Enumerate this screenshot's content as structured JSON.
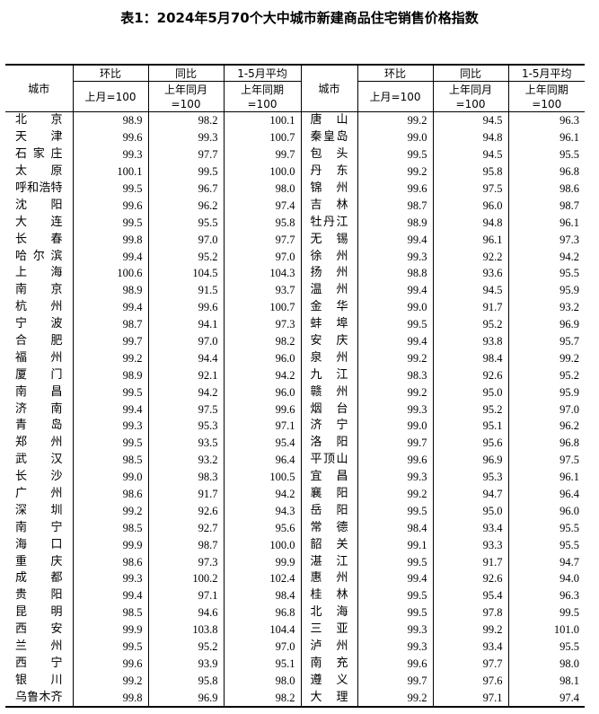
{
  "title": "表1：2024年5月70个大中城市新建商品住宅销售价格指数",
  "headers": {
    "city": "城市",
    "mom": "环比",
    "yoy": "同比",
    "avg": "1-5月平均",
    "mom_base": "上月=100",
    "yoy_base_1": "上年同月",
    "yoy_base_2": "=100",
    "avg_base_1": "上年同期",
    "avg_base_2": "=100"
  },
  "left_rows": [
    [
      "北京",
      "98.9",
      "98.2",
      "100.1"
    ],
    [
      "天津",
      "99.6",
      "99.3",
      "100.7"
    ],
    [
      "石家庄",
      "99.3",
      "97.7",
      "99.7"
    ],
    [
      "太原",
      "100.1",
      "99.5",
      "100.0"
    ],
    [
      "呼和浩特",
      "99.5",
      "96.7",
      "98.0"
    ],
    [
      "沈阳",
      "99.6",
      "96.2",
      "97.4"
    ],
    [
      "大连",
      "99.5",
      "95.5",
      "95.8"
    ],
    [
      "长春",
      "99.8",
      "97.0",
      "97.7"
    ],
    [
      "哈尔滨",
      "99.4",
      "95.2",
      "97.0"
    ],
    [
      "上海",
      "100.6",
      "104.5",
      "104.3"
    ],
    [
      "南京",
      "98.9",
      "91.5",
      "93.7"
    ],
    [
      "杭州",
      "99.4",
      "99.6",
      "100.7"
    ],
    [
      "宁波",
      "98.7",
      "94.1",
      "97.3"
    ],
    [
      "合肥",
      "99.7",
      "97.0",
      "98.2"
    ],
    [
      "福州",
      "99.2",
      "94.4",
      "96.0"
    ],
    [
      "厦门",
      "98.9",
      "92.1",
      "94.2"
    ],
    [
      "南昌",
      "99.5",
      "94.2",
      "96.0"
    ],
    [
      "济南",
      "99.4",
      "97.5",
      "99.6"
    ],
    [
      "青岛",
      "99.3",
      "95.3",
      "97.1"
    ],
    [
      "郑州",
      "99.5",
      "93.5",
      "95.4"
    ],
    [
      "武汉",
      "98.5",
      "93.2",
      "96.4"
    ],
    [
      "长沙",
      "99.0",
      "98.3",
      "100.5"
    ],
    [
      "广州",
      "98.6",
      "91.7",
      "94.2"
    ],
    [
      "深圳",
      "99.2",
      "92.6",
      "94.3"
    ],
    [
      "南宁",
      "98.5",
      "92.7",
      "95.6"
    ],
    [
      "海口",
      "99.9",
      "98.7",
      "100.0"
    ],
    [
      "重庆",
      "98.6",
      "97.3",
      "99.9"
    ],
    [
      "成都",
      "99.3",
      "100.2",
      "102.4"
    ],
    [
      "贵阳",
      "99.4",
      "97.1",
      "98.4"
    ],
    [
      "昆明",
      "98.5",
      "94.6",
      "96.8"
    ],
    [
      "西安",
      "99.9",
      "103.8",
      "104.4"
    ],
    [
      "兰州",
      "99.5",
      "95.2",
      "97.0"
    ],
    [
      "西宁",
      "99.6",
      "93.9",
      "95.1"
    ],
    [
      "银川",
      "99.2",
      "95.8",
      "98.0"
    ],
    [
      "乌鲁木齐",
      "99.8",
      "96.9",
      "98.2"
    ]
  ],
  "right_rows": [
    [
      "唐山",
      "99.2",
      "94.5",
      "96.3"
    ],
    [
      "秦皇岛",
      "99.0",
      "94.8",
      "96.1"
    ],
    [
      "包头",
      "99.5",
      "94.5",
      "95.5"
    ],
    [
      "丹东",
      "99.2",
      "95.8",
      "96.8"
    ],
    [
      "锦州",
      "99.6",
      "97.5",
      "98.6"
    ],
    [
      "吉林",
      "98.7",
      "96.0",
      "98.7"
    ],
    [
      "牡丹江",
      "98.9",
      "94.8",
      "96.1"
    ],
    [
      "无锡",
      "99.4",
      "96.1",
      "97.3"
    ],
    [
      "徐州",
      "99.3",
      "92.2",
      "94.2"
    ],
    [
      "扬州",
      "98.8",
      "93.6",
      "95.5"
    ],
    [
      "温州",
      "99.4",
      "94.5",
      "95.9"
    ],
    [
      "金华",
      "99.0",
      "91.7",
      "93.2"
    ],
    [
      "蚌埠",
      "99.5",
      "95.2",
      "96.9"
    ],
    [
      "安庆",
      "99.4",
      "93.8",
      "95.7"
    ],
    [
      "泉州",
      "99.2",
      "98.4",
      "99.2"
    ],
    [
      "九江",
      "98.3",
      "92.6",
      "95.2"
    ],
    [
      "赣州",
      "99.2",
      "95.0",
      "95.9"
    ],
    [
      "烟台",
      "99.3",
      "95.2",
      "97.0"
    ],
    [
      "济宁",
      "99.0",
      "95.1",
      "96.2"
    ],
    [
      "洛阳",
      "99.7",
      "95.6",
      "96.8"
    ],
    [
      "平顶山",
      "99.6",
      "96.9",
      "97.5"
    ],
    [
      "宜昌",
      "99.3",
      "95.3",
      "96.1"
    ],
    [
      "襄阳",
      "99.2",
      "94.7",
      "96.4"
    ],
    [
      "岳阳",
      "99.5",
      "95.0",
      "96.0"
    ],
    [
      "常德",
      "98.4",
      "93.4",
      "95.5"
    ],
    [
      "韶关",
      "99.1",
      "93.3",
      "95.5"
    ],
    [
      "湛江",
      "99.5",
      "91.7",
      "94.7"
    ],
    [
      "惠州",
      "99.4",
      "92.6",
      "94.0"
    ],
    [
      "桂林",
      "99.5",
      "95.4",
      "96.3"
    ],
    [
      "北海",
      "99.5",
      "97.8",
      "99.5"
    ],
    [
      "三亚",
      "99.3",
      "99.2",
      "101.0"
    ],
    [
      "泸州",
      "99.3",
      "93.4",
      "95.5"
    ],
    [
      "南充",
      "99.6",
      "97.7",
      "98.0"
    ],
    [
      "遵义",
      "99.7",
      "97.6",
      "98.1"
    ],
    [
      "大理",
      "99.2",
      "97.1",
      "97.4"
    ]
  ]
}
